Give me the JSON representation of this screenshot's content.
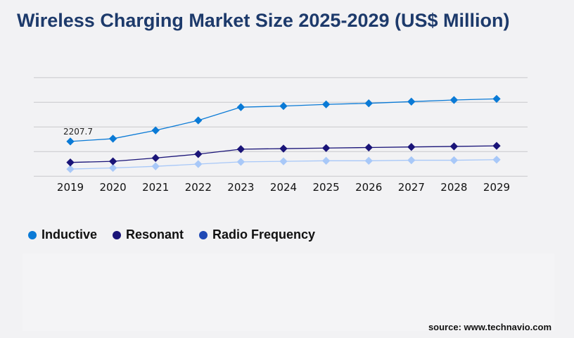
{
  "chart_data": {
    "type": "line",
    "title": "Wireless Charging Market Size 2025-2029 (US$ Million)",
    "categories": [
      "2019",
      "2020",
      "2021",
      "2022",
      "2023",
      "2024",
      "2025",
      "2026",
      "2027",
      "2028",
      "2029"
    ],
    "ylim": [
      0,
      6250
    ],
    "grid": true,
    "legend_position": "bottom-left",
    "series": [
      {
        "name": "Inductive",
        "color": "#0a7ad6",
        "legend_color": "#0a7ad6",
        "values": [
          2207.7,
          2383,
          2908,
          3539,
          4380,
          4450,
          4556,
          4625,
          4731,
          4836,
          4906
        ]
      },
      {
        "name": "Resonant",
        "color": "#1a1478",
        "legend_color": "#1a1478",
        "values": [
          876,
          946,
          1156,
          1402,
          1717,
          1752,
          1787,
          1822,
          1857,
          1892,
          1927
        ]
      },
      {
        "name": "Radio Frequency",
        "color": "#a8c8f8",
        "legend_color": "#1f49b5",
        "values": [
          456,
          526,
          631,
          771,
          911,
          946,
          981,
          981,
          1016,
          1016,
          1051
        ]
      }
    ],
    "annotations": [
      {
        "series": "Inductive",
        "category": "2019",
        "text": "2207.7"
      }
    ]
  },
  "source": "source: www.technavio.com"
}
